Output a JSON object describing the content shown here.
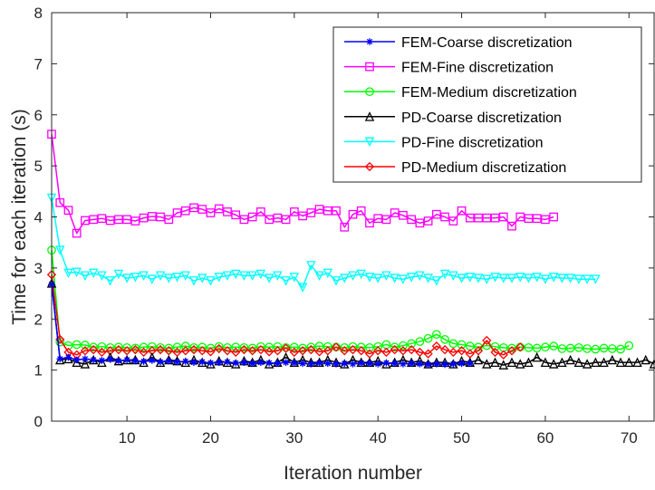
{
  "chart_data": {
    "type": "line",
    "title": "",
    "xlabel": "Iteration number",
    "ylabel": "Time for each iteration (s)",
    "xlim": [
      1,
      73
    ],
    "ylim": [
      0,
      8
    ],
    "xticks": [
      "10",
      "20",
      "30",
      "40",
      "50",
      "60",
      "70"
    ],
    "yticks": [
      "0",
      "1",
      "2",
      "3",
      "4",
      "5",
      "6",
      "7",
      "8"
    ],
    "grid": false,
    "legend_position": "top-right",
    "series": [
      {
        "name": "FEM-Coarse discretization",
        "color": "#0000ff",
        "marker": "asterisk",
        "x": [
          1,
          2,
          3,
          4,
          5,
          6,
          7,
          8,
          9,
          10,
          11,
          12,
          13,
          14,
          15,
          16,
          17,
          18,
          19,
          20,
          21,
          22,
          23,
          24,
          25,
          26,
          27,
          28,
          29,
          30,
          31,
          32,
          33,
          34,
          35,
          36,
          37,
          38,
          39,
          40,
          41,
          42,
          43,
          44,
          45,
          46,
          47,
          48,
          49,
          50,
          51
        ],
        "y": [
          2.68,
          1.22,
          1.25,
          1.2,
          1.22,
          1.2,
          1.19,
          1.21,
          1.18,
          1.2,
          1.18,
          1.17,
          1.19,
          1.16,
          1.18,
          1.16,
          1.17,
          1.15,
          1.16,
          1.14,
          1.15,
          1.16,
          1.14,
          1.15,
          1.13,
          1.15,
          1.14,
          1.13,
          1.15,
          1.14,
          1.13,
          1.12,
          1.14,
          1.13,
          1.12,
          1.13,
          1.12,
          1.14,
          1.13,
          1.12,
          1.14,
          1.13,
          1.12,
          1.13,
          1.12,
          1.11,
          1.12,
          1.11,
          1.12,
          1.13,
          1.13
        ]
      },
      {
        "name": "FEM-Fine discretization",
        "color": "#ff00ff",
        "marker": "square",
        "x": [
          1,
          2,
          3,
          4,
          5,
          6,
          7,
          8,
          9,
          10,
          11,
          12,
          13,
          14,
          15,
          16,
          17,
          18,
          19,
          20,
          21,
          22,
          23,
          24,
          25,
          26,
          27,
          28,
          29,
          30,
          31,
          32,
          33,
          34,
          35,
          36,
          37,
          38,
          39,
          40,
          41,
          42,
          43,
          44,
          45,
          46,
          47,
          48,
          49,
          50,
          51,
          52,
          53,
          54,
          55,
          56,
          57,
          58,
          59,
          60,
          61
        ],
        "y": [
          5.62,
          4.28,
          4.13,
          3.68,
          3.93,
          3.95,
          3.97,
          3.93,
          3.95,
          3.95,
          3.92,
          3.98,
          4.01,
          4.0,
          3.95,
          4.08,
          4.12,
          4.18,
          4.15,
          4.08,
          4.16,
          4.1,
          4.04,
          3.95,
          4.0,
          4.1,
          3.95,
          3.98,
          3.95,
          4.1,
          4.02,
          4.08,
          4.15,
          4.12,
          4.12,
          3.8,
          4.05,
          4.12,
          3.88,
          3.97,
          3.95,
          4.08,
          4.03,
          3.95,
          3.88,
          3.92,
          4.05,
          4.0,
          3.92,
          4.12,
          3.98,
          3.98,
          3.98,
          3.98,
          4.0,
          3.82,
          4.0,
          3.97,
          3.97,
          3.95,
          4.0
        ]
      },
      {
        "name": "FEM-Medium discretization",
        "color": "#00ff00",
        "marker": "circle",
        "x": [
          1,
          2,
          3,
          4,
          5,
          6,
          7,
          8,
          9,
          10,
          11,
          12,
          13,
          14,
          15,
          16,
          17,
          18,
          19,
          20,
          21,
          22,
          23,
          24,
          25,
          26,
          27,
          28,
          29,
          30,
          31,
          32,
          33,
          34,
          35,
          36,
          37,
          38,
          39,
          40,
          41,
          42,
          43,
          44,
          45,
          46,
          47,
          48,
          49,
          50,
          51,
          52,
          53,
          54,
          55,
          56,
          57,
          58,
          59,
          60,
          61,
          62,
          63,
          64,
          65,
          66,
          67,
          68,
          69,
          70
        ],
        "y": [
          3.35,
          1.55,
          1.48,
          1.5,
          1.49,
          1.45,
          1.46,
          1.44,
          1.45,
          1.44,
          1.43,
          1.45,
          1.46,
          1.44,
          1.43,
          1.45,
          1.47,
          1.44,
          1.45,
          1.43,
          1.46,
          1.44,
          1.45,
          1.44,
          1.43,
          1.46,
          1.45,
          1.46,
          1.44,
          1.45,
          1.43,
          1.45,
          1.47,
          1.46,
          1.45,
          1.44,
          1.46,
          1.45,
          1.44,
          1.46,
          1.5,
          1.45,
          1.48,
          1.52,
          1.56,
          1.62,
          1.7,
          1.6,
          1.52,
          1.5,
          1.47,
          1.45,
          1.48,
          1.46,
          1.44,
          1.43,
          1.45,
          1.44,
          1.43,
          1.45,
          1.47,
          1.42,
          1.43,
          1.44,
          1.42,
          1.41,
          1.43,
          1.42,
          1.41,
          1.48
        ]
      },
      {
        "name": "PD-Coarse discretization",
        "color": "#000000",
        "marker": "triangle-up",
        "x": [
          1,
          2,
          3,
          4,
          5,
          6,
          7,
          8,
          9,
          10,
          11,
          12,
          13,
          14,
          15,
          16,
          17,
          18,
          19,
          20,
          21,
          22,
          23,
          24,
          25,
          26,
          27,
          28,
          29,
          30,
          31,
          32,
          33,
          34,
          35,
          36,
          37,
          38,
          39,
          40,
          41,
          42,
          43,
          44,
          45,
          46,
          47,
          48,
          49,
          50,
          51,
          52,
          53,
          54,
          55,
          56,
          57,
          58,
          59,
          60,
          61,
          62,
          63,
          64,
          65,
          66,
          67,
          68,
          69,
          70,
          71,
          72,
          73
        ],
        "y": [
          2.7,
          1.2,
          1.22,
          1.15,
          1.12,
          1.2,
          1.15,
          1.25,
          1.18,
          1.2,
          1.2,
          1.15,
          1.25,
          1.15,
          1.2,
          1.18,
          1.15,
          1.2,
          1.15,
          1.12,
          1.18,
          1.15,
          1.12,
          1.18,
          1.15,
          1.2,
          1.12,
          1.15,
          1.25,
          1.15,
          1.2,
          1.15,
          1.15,
          1.2,
          1.15,
          1.12,
          1.2,
          1.15,
          1.15,
          1.18,
          1.12,
          1.15,
          1.2,
          1.15,
          1.18,
          1.12,
          1.15,
          1.15,
          1.12,
          1.18,
          1.15,
          1.2,
          1.12,
          1.15,
          1.1,
          1.15,
          1.12,
          1.15,
          1.25,
          1.15,
          1.12,
          1.15,
          1.2,
          1.15,
          1.12,
          1.15,
          1.15,
          1.2,
          1.15,
          1.15,
          1.15,
          1.2,
          1.12
        ]
      },
      {
        "name": "PD-Fine discretization",
        "color": "#00ffff",
        "marker": "triangle-down",
        "x": [
          1,
          2,
          3,
          4,
          5,
          6,
          7,
          8,
          9,
          10,
          11,
          12,
          13,
          14,
          15,
          16,
          17,
          18,
          19,
          20,
          21,
          22,
          23,
          24,
          25,
          26,
          27,
          28,
          29,
          30,
          31,
          32,
          33,
          34,
          35,
          36,
          37,
          38,
          39,
          40,
          41,
          42,
          43,
          44,
          45,
          46,
          47,
          48,
          49,
          50,
          51,
          52,
          53,
          54,
          55,
          56,
          57,
          58,
          59,
          60,
          61,
          62,
          63,
          64,
          65,
          66
        ],
        "y": [
          4.37,
          3.35,
          2.9,
          2.92,
          2.85,
          2.9,
          2.85,
          2.75,
          2.88,
          2.8,
          2.82,
          2.85,
          2.78,
          2.85,
          2.8,
          2.82,
          2.85,
          2.75,
          2.8,
          2.75,
          2.82,
          2.85,
          2.88,
          2.85,
          2.85,
          2.88,
          2.8,
          2.85,
          2.75,
          2.82,
          2.62,
          3.05,
          2.85,
          2.9,
          2.75,
          2.8,
          2.85,
          2.88,
          2.82,
          2.8,
          2.85,
          2.8,
          2.78,
          2.82,
          2.85,
          2.8,
          2.75,
          2.88,
          2.85,
          2.8,
          2.82,
          2.8,
          2.78,
          2.82,
          2.8,
          2.8,
          2.82,
          2.8,
          2.82,
          2.78,
          2.82,
          2.8,
          2.8,
          2.78,
          2.78,
          2.78
        ]
      },
      {
        "name": "PD-Medium discretization",
        "color": "#ff0000",
        "marker": "diamond",
        "x": [
          1,
          2,
          3,
          4,
          5,
          6,
          7,
          8,
          9,
          10,
          11,
          12,
          13,
          14,
          15,
          16,
          17,
          18,
          19,
          20,
          21,
          22,
          23,
          24,
          25,
          26,
          27,
          28,
          29,
          30,
          31,
          32,
          33,
          34,
          35,
          36,
          37,
          38,
          39,
          40,
          41,
          42,
          43,
          44,
          45,
          46,
          47,
          48,
          49,
          50,
          51,
          52,
          53,
          54,
          55,
          56,
          57
        ],
        "y": [
          2.87,
          1.6,
          1.35,
          1.3,
          1.38,
          1.4,
          1.35,
          1.38,
          1.4,
          1.38,
          1.4,
          1.35,
          1.38,
          1.4,
          1.38,
          1.35,
          1.38,
          1.4,
          1.38,
          1.36,
          1.42,
          1.38,
          1.35,
          1.4,
          1.38,
          1.4,
          1.36,
          1.38,
          1.43,
          1.35,
          1.38,
          1.4,
          1.36,
          1.38,
          1.45,
          1.38,
          1.4,
          1.38,
          1.32,
          1.38,
          1.35,
          1.4,
          1.38,
          1.4,
          1.35,
          1.32,
          1.47,
          1.4,
          1.35,
          1.38,
          1.32,
          1.38,
          1.58,
          1.35,
          1.3,
          1.38,
          1.45
        ]
      }
    ]
  }
}
